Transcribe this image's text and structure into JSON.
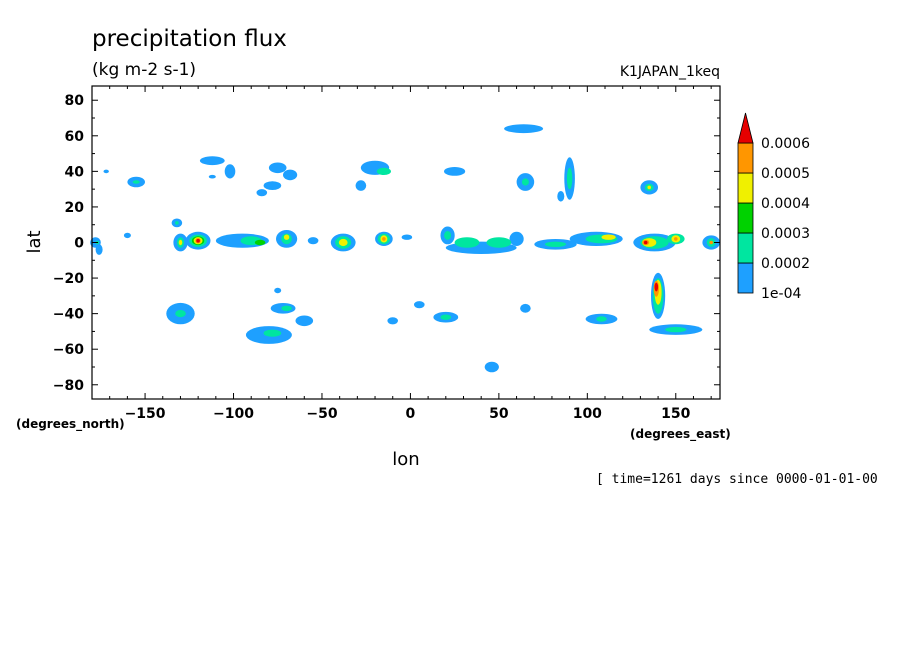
{
  "chart_data": {
    "type": "heatmap",
    "title": "precipitation flux",
    "units": "(kg m-2 s-1)",
    "run_label": "K1JAPAN_1keq",
    "xlabel": "lon",
    "ylabel": "lat",
    "x_unit_label": "(degrees_east)",
    "y_unit_label": "(degrees_north)",
    "time_label": "[ time=1261 days since 0000-01-01-00",
    "xlim": [
      -180,
      175
    ],
    "ylim": [
      -88,
      88
    ],
    "x_ticks": [
      -150,
      -100,
      -50,
      0,
      50,
      100,
      150
    ],
    "y_ticks": [
      80,
      60,
      40,
      20,
      0,
      -20,
      -40,
      -60,
      -80
    ],
    "levels": [
      0.0001,
      0.0002,
      0.0003,
      0.0004,
      0.0005,
      0.0006
    ],
    "level_labels": [
      "1e-04",
      "0.0002",
      "0.0003",
      "0.0004",
      "0.0005",
      "0.0006"
    ],
    "level_colors": [
      "#1ea0ff",
      "#00e6a0",
      "#00d200",
      "#f0f000",
      "#ff9600",
      "#e60000"
    ],
    "colorbar_extend": "max",
    "cells": [
      {
        "lon": -178,
        "lat": 0,
        "w": 6,
        "h": 6,
        "level": 0
      },
      {
        "lon": -176,
        "lat": -4,
        "w": 4,
        "h": 6,
        "level": 0
      },
      {
        "lon": -177,
        "lat": 0,
        "w": 2,
        "h": 2,
        "level": 1
      },
      {
        "lon": -160,
        "lat": 4,
        "w": 4,
        "h": 3,
        "level": 0
      },
      {
        "lon": -155,
        "lat": 34,
        "w": 10,
        "h": 6,
        "level": 0
      },
      {
        "lon": -155,
        "lat": 34,
        "w": 4,
        "h": 2,
        "level": 1
      },
      {
        "lon": -132,
        "lat": 11,
        "w": 6,
        "h": 5,
        "level": 0
      },
      {
        "lon": -132,
        "lat": 11,
        "w": 2,
        "h": 2,
        "level": 1
      },
      {
        "lon": -130,
        "lat": 0,
        "w": 8,
        "h": 10,
        "level": 0
      },
      {
        "lon": -130,
        "lat": 0,
        "w": 4,
        "h": 6,
        "level": 1
      },
      {
        "lon": -130,
        "lat": 0,
        "w": 2,
        "h": 3,
        "level": 3
      },
      {
        "lon": -120,
        "lat": 1,
        "w": 14,
        "h": 10,
        "level": 0
      },
      {
        "lon": -120,
        "lat": 1,
        "w": 10,
        "h": 7,
        "level": 1
      },
      {
        "lon": -120,
        "lat": 1,
        "w": 7,
        "h": 5,
        "level": 2
      },
      {
        "lon": -120,
        "lat": 1,
        "w": 5,
        "h": 4,
        "level": 3
      },
      {
        "lon": -120,
        "lat": 1,
        "w": 3,
        "h": 3,
        "level": 4
      },
      {
        "lon": -120,
        "lat": 1,
        "w": 2,
        "h": 2,
        "level": 5
      },
      {
        "lon": -112,
        "lat": 46,
        "w": 14,
        "h": 5,
        "level": 0
      },
      {
        "lon": -102,
        "lat": 40,
        "w": 6,
        "h": 8,
        "level": 0
      },
      {
        "lon": -95,
        "lat": 1,
        "w": 30,
        "h": 8,
        "level": 0
      },
      {
        "lon": -90,
        "lat": 1,
        "w": 12,
        "h": 5,
        "level": 1
      },
      {
        "lon": -85,
        "lat": 0,
        "w": 6,
        "h": 3,
        "level": 2
      },
      {
        "lon": -70,
        "lat": 2,
        "w": 12,
        "h": 10,
        "level": 0
      },
      {
        "lon": -70,
        "lat": 2,
        "w": 6,
        "h": 6,
        "level": 1
      },
      {
        "lon": -70,
        "lat": 3,
        "w": 3,
        "h": 3,
        "level": 3
      },
      {
        "lon": -75,
        "lat": 42,
        "w": 10,
        "h": 6,
        "level": 0
      },
      {
        "lon": -68,
        "lat": 38,
        "w": 8,
        "h": 6,
        "level": 0
      },
      {
        "lon": -78,
        "lat": 32,
        "w": 10,
        "h": 5,
        "level": 0
      },
      {
        "lon": -84,
        "lat": 28,
        "w": 6,
        "h": 4,
        "level": 0
      },
      {
        "lon": -55,
        "lat": 1,
        "w": 6,
        "h": 4,
        "level": 0
      },
      {
        "lon": -38,
        "lat": 0,
        "w": 14,
        "h": 10,
        "level": 0
      },
      {
        "lon": -38,
        "lat": 0,
        "w": 9,
        "h": 7,
        "level": 1
      },
      {
        "lon": -38,
        "lat": 0,
        "w": 5,
        "h": 4,
        "level": 3
      },
      {
        "lon": -15,
        "lat": 2,
        "w": 10,
        "h": 8,
        "level": 0
      },
      {
        "lon": -15,
        "lat": 2,
        "w": 7,
        "h": 6,
        "level": 1
      },
      {
        "lon": -15,
        "lat": 2,
        "w": 4,
        "h": 4,
        "level": 3
      },
      {
        "lon": -15,
        "lat": 2,
        "w": 2,
        "h": 2,
        "level": 4
      },
      {
        "lon": -2,
        "lat": 3,
        "w": 6,
        "h": 3,
        "level": 0
      },
      {
        "lon": -20,
        "lat": 42,
        "w": 16,
        "h": 8,
        "level": 0
      },
      {
        "lon": -15,
        "lat": 40,
        "w": 8,
        "h": 4,
        "level": 1
      },
      {
        "lon": -28,
        "lat": 32,
        "w": 6,
        "h": 6,
        "level": 0
      },
      {
        "lon": 25,
        "lat": 40,
        "w": 12,
        "h": 5,
        "level": 0
      },
      {
        "lon": 21,
        "lat": 4,
        "w": 8,
        "h": 10,
        "level": 0
      },
      {
        "lon": 21,
        "lat": 4,
        "w": 4,
        "h": 5,
        "level": 1
      },
      {
        "lon": 40,
        "lat": -3,
        "w": 40,
        "h": 7,
        "level": 0
      },
      {
        "lon": 32,
        "lat": 0,
        "w": 14,
        "h": 6,
        "level": 1
      },
      {
        "lon": 50,
        "lat": 0,
        "w": 14,
        "h": 6,
        "level": 1
      },
      {
        "lon": 60,
        "lat": 2,
        "w": 8,
        "h": 8,
        "level": 0
      },
      {
        "lon": 64,
        "lat": 64,
        "w": 22,
        "h": 5,
        "level": 0
      },
      {
        "lon": 65,
        "lat": 34,
        "w": 10,
        "h": 10,
        "level": 0
      },
      {
        "lon": 65,
        "lat": 34,
        "w": 4,
        "h": 4,
        "level": 1
      },
      {
        "lon": 90,
        "lat": 36,
        "w": 6,
        "h": 24,
        "level": 0
      },
      {
        "lon": 90,
        "lat": 36,
        "w": 3,
        "h": 12,
        "level": 1
      },
      {
        "lon": 85,
        "lat": 26,
        "w": 4,
        "h": 6,
        "level": 0
      },
      {
        "lon": 82,
        "lat": -1,
        "w": 24,
        "h": 6,
        "level": 0
      },
      {
        "lon": 82,
        "lat": -1,
        "w": 12,
        "h": 3,
        "level": 1
      },
      {
        "lon": 105,
        "lat": 2,
        "w": 30,
        "h": 8,
        "level": 0
      },
      {
        "lon": 108,
        "lat": 2,
        "w": 18,
        "h": 5,
        "level": 1
      },
      {
        "lon": 112,
        "lat": 3,
        "w": 8,
        "h": 3,
        "level": 3
      },
      {
        "lon": 135,
        "lat": 31,
        "w": 10,
        "h": 8,
        "level": 0
      },
      {
        "lon": 135,
        "lat": 31,
        "w": 5,
        "h": 4,
        "level": 1
      },
      {
        "lon": 135,
        "lat": 31,
        "w": 2,
        "h": 2,
        "level": 3
      },
      {
        "lon": 138,
        "lat": 0,
        "w": 24,
        "h": 10,
        "level": 0
      },
      {
        "lon": 138,
        "lat": 0,
        "w": 16,
        "h": 7,
        "level": 1
      },
      {
        "lon": 135,
        "lat": 0,
        "w": 8,
        "h": 5,
        "level": 3
      },
      {
        "lon": 133,
        "lat": 0,
        "w": 4,
        "h": 3,
        "level": 4
      },
      {
        "lon": 133,
        "lat": 0,
        "w": 2,
        "h": 2,
        "level": 5
      },
      {
        "lon": 150,
        "lat": 2,
        "w": 10,
        "h": 6,
        "level": 1
      },
      {
        "lon": 150,
        "lat": 2,
        "w": 5,
        "h": 4,
        "level": 3
      },
      {
        "lon": 150,
        "lat": 2,
        "w": 2,
        "h": 2,
        "level": 4
      },
      {
        "lon": 170,
        "lat": 0,
        "w": 10,
        "h": 8,
        "level": 0
      },
      {
        "lon": 170,
        "lat": 0,
        "w": 5,
        "h": 5,
        "level": 1
      },
      {
        "lon": 170,
        "lat": 0,
        "w": 2,
        "h": 2,
        "level": 4
      },
      {
        "lon": 140,
        "lat": -30,
        "w": 8,
        "h": 26,
        "level": 0
      },
      {
        "lon": 140,
        "lat": -30,
        "w": 6,
        "h": 20,
        "level": 1
      },
      {
        "lon": 140,
        "lat": -28,
        "w": 4,
        "h": 14,
        "level": 3
      },
      {
        "lon": 139,
        "lat": -26,
        "w": 3,
        "h": 9,
        "level": 4
      },
      {
        "lon": 139,
        "lat": -25,
        "w": 2,
        "h": 5,
        "level": 5
      },
      {
        "lon": 150,
        "lat": -49,
        "w": 30,
        "h": 6,
        "level": 0
      },
      {
        "lon": 150,
        "lat": -49,
        "w": 12,
        "h": 3,
        "level": 1
      },
      {
        "lon": 108,
        "lat": -43,
        "w": 18,
        "h": 6,
        "level": 0
      },
      {
        "lon": 108,
        "lat": -43,
        "w": 6,
        "h": 3,
        "level": 1
      },
      {
        "lon": -130,
        "lat": -40,
        "w": 16,
        "h": 12,
        "level": 0
      },
      {
        "lon": -130,
        "lat": -40,
        "w": 6,
        "h": 4,
        "level": 1
      },
      {
        "lon": -72,
        "lat": -37,
        "w": 14,
        "h": 6,
        "level": 0
      },
      {
        "lon": -70,
        "lat": -37,
        "w": 6,
        "h": 3,
        "level": 1
      },
      {
        "lon": -80,
        "lat": -52,
        "w": 26,
        "h": 10,
        "level": 0
      },
      {
        "lon": -78,
        "lat": -51,
        "w": 10,
        "h": 4,
        "level": 1
      },
      {
        "lon": -60,
        "lat": -44,
        "w": 10,
        "h": 6,
        "level": 0
      },
      {
        "lon": -10,
        "lat": -44,
        "w": 6,
        "h": 4,
        "level": 0
      },
      {
        "lon": 20,
        "lat": -42,
        "w": 14,
        "h": 6,
        "level": 0
      },
      {
        "lon": 20,
        "lat": -42,
        "w": 6,
        "h": 3,
        "level": 1
      },
      {
        "lon": 46,
        "lat": -70,
        "w": 8,
        "h": 6,
        "level": 0
      },
      {
        "lon": 65,
        "lat": -37,
        "w": 6,
        "h": 5,
        "level": 0
      },
      {
        "lon": 5,
        "lat": -35,
        "w": 6,
        "h": 4,
        "level": 0
      },
      {
        "lon": -75,
        "lat": -27,
        "w": 4,
        "h": 3,
        "level": 0
      },
      {
        "lon": -172,
        "lat": 40,
        "w": 3,
        "h": 2,
        "level": 0
      },
      {
        "lon": -112,
        "lat": 37,
        "w": 4,
        "h": 2,
        "level": 0
      }
    ]
  }
}
